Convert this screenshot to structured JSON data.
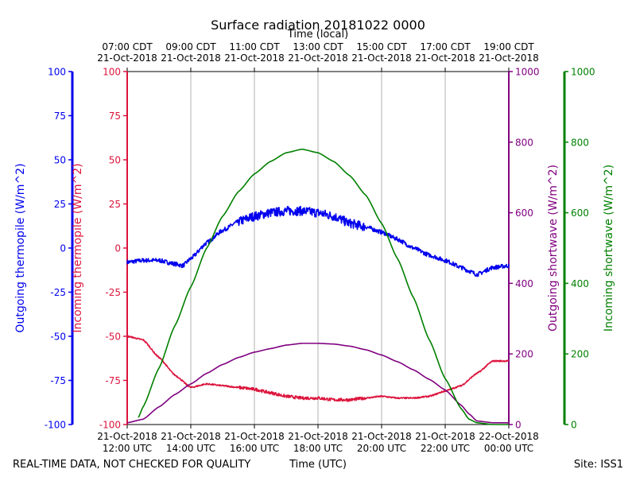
{
  "chart_data": {
    "type": "line",
    "title": "Surface radiation 20181022 0000",
    "top_axis_label": "Time (local)",
    "xlabel": "Time (UTC)",
    "footer_left": "REAL-TIME DATA, NOT CHECKED FOR QUALITY",
    "footer_right": "Site: ISS1",
    "x_range_hours": [
      12,
      24
    ],
    "bottom_ticks": [
      {
        "hour": 12,
        "line1": "21-Oct-2018",
        "line2": "12:00 UTC"
      },
      {
        "hour": 14,
        "line1": "21-Oct-2018",
        "line2": "14:00 UTC"
      },
      {
        "hour": 16,
        "line1": "21-Oct-2018",
        "line2": "16:00 UTC"
      },
      {
        "hour": 18,
        "line1": "21-Oct-2018",
        "line2": "18:00 UTC"
      },
      {
        "hour": 20,
        "line1": "21-Oct-2018",
        "line2": "20:00 UTC"
      },
      {
        "hour": 22,
        "line1": "21-Oct-2018",
        "line2": "22:00 UTC"
      },
      {
        "hour": 24,
        "line1": "22-Oct-2018",
        "line2": "00:00 UTC"
      }
    ],
    "top_ticks": [
      {
        "hour": 12,
        "line1": "07:00 CDT",
        "line2": "21-Oct-2018"
      },
      {
        "hour": 14,
        "line1": "09:00 CDT",
        "line2": "21-Oct-2018"
      },
      {
        "hour": 16,
        "line1": "11:00 CDT",
        "line2": "21-Oct-2018"
      },
      {
        "hour": 18,
        "line1": "13:00 CDT",
        "line2": "21-Oct-2018"
      },
      {
        "hour": 20,
        "line1": "15:00 CDT",
        "line2": "21-Oct-2018"
      },
      {
        "hour": 22,
        "line1": "17:00 CDT",
        "line2": "21-Oct-2018"
      },
      {
        "hour": 24,
        "line1": "19:00 CDT",
        "line2": "21-Oct-2018"
      }
    ],
    "grid": "vertical",
    "axes": [
      {
        "id": "outgoing_thermopile",
        "label": "Outgoing thermopile (W/m^2)",
        "color": "#0000ee",
        "range": [
          -100,
          100
        ],
        "ticks": [
          -100,
          -75,
          -50,
          -25,
          0,
          25,
          50,
          75,
          100
        ],
        "side": "left-outer"
      },
      {
        "id": "incoming_thermopile",
        "label": "Incoming thermopile (W/m^2)",
        "color": "#dc143c",
        "range": [
          -100,
          100
        ],
        "ticks": [
          -100,
          -75,
          -50,
          -25,
          0,
          25,
          50,
          75,
          100
        ],
        "side": "left-inner"
      },
      {
        "id": "outgoing_shortwave",
        "label": "Outgoing shortwave (W/m^2)",
        "color": "#800080",
        "range": [
          0,
          1000
        ],
        "ticks": [
          0,
          200,
          400,
          600,
          800,
          1000
        ],
        "side": "right-inner"
      },
      {
        "id": "incoming_shortwave",
        "label": "Incoming shortwave (W/m^2)",
        "color": "#008000",
        "range": [
          0,
          1000
        ],
        "ticks": [
          0,
          200,
          400,
          600,
          800,
          1000
        ],
        "side": "right-outer"
      }
    ],
    "series": [
      {
        "axis": "outgoing_thermopile",
        "color": "#0000ee",
        "noise": 1.2,
        "x": [
          12.0,
          12.5,
          13.0,
          13.5,
          13.75,
          14.0,
          14.5,
          15.0,
          15.5,
          16.0,
          16.5,
          17.0,
          17.5,
          18.0,
          18.5,
          19.0,
          19.5,
          20.0,
          20.5,
          21.0,
          21.5,
          22.0,
          22.5,
          22.75,
          23.0,
          23.5,
          24.0
        ],
        "y": [
          -8,
          -7,
          -7,
          -9,
          -10,
          -6,
          3,
          10,
          15,
          18,
          20,
          21,
          21,
          20,
          18,
          14,
          12,
          9,
          5,
          0,
          -4,
          -7,
          -11,
          -13,
          -15,
          -11,
          -10
        ]
      },
      {
        "axis": "incoming_thermopile",
        "color": "#dc143c",
        "noise": 0.4,
        "x": [
          12.0,
          12.5,
          13.0,
          13.5,
          14.0,
          14.5,
          15.0,
          15.5,
          16.0,
          16.5,
          17.0,
          17.5,
          18.0,
          18.5,
          19.0,
          19.5,
          20.0,
          20.5,
          21.0,
          21.5,
          22.0,
          22.5,
          23.0,
          23.5,
          24.0
        ],
        "y": [
          -50,
          -52,
          -62,
          -72,
          -79,
          -77,
          -78,
          -79,
          -80,
          -82,
          -84,
          -85,
          -85,
          -86,
          -86,
          -85,
          -84,
          -85,
          -85,
          -84,
          -81,
          -78,
          -71,
          -64,
          -64
        ]
      },
      {
        "axis": "outgoing_shortwave",
        "color": "#800080",
        "noise": 0,
        "x": [
          12.0,
          12.5,
          13.0,
          13.5,
          14.0,
          14.5,
          15.0,
          15.5,
          16.0,
          16.5,
          17.0,
          17.5,
          18.0,
          18.5,
          19.0,
          19.5,
          20.0,
          20.5,
          21.0,
          21.5,
          22.0,
          22.5,
          22.75,
          23.0,
          23.5,
          24.0
        ],
        "y": [
          5,
          15,
          50,
          85,
          115,
          145,
          170,
          190,
          205,
          215,
          225,
          230,
          230,
          228,
          222,
          212,
          197,
          178,
          155,
          128,
          98,
          55,
          30,
          10,
          5,
          5
        ]
      },
      {
        "axis": "incoming_shortwave",
        "color": "#008000",
        "noise": 0,
        "x": [
          12.35,
          12.5,
          13.0,
          13.5,
          14.0,
          14.5,
          15.0,
          15.5,
          16.0,
          16.5,
          17.0,
          17.5,
          18.0,
          18.5,
          19.0,
          19.5,
          20.0,
          20.5,
          21.0,
          21.5,
          22.0,
          22.5,
          22.75,
          23.0,
          23.5,
          24.0
        ],
        "y": [
          20,
          50,
          160,
          280,
          390,
          500,
          590,
          660,
          710,
          745,
          770,
          780,
          770,
          745,
          705,
          650,
          570,
          470,
          360,
          240,
          130,
          45,
          15,
          5,
          0,
          0
        ]
      }
    ]
  }
}
